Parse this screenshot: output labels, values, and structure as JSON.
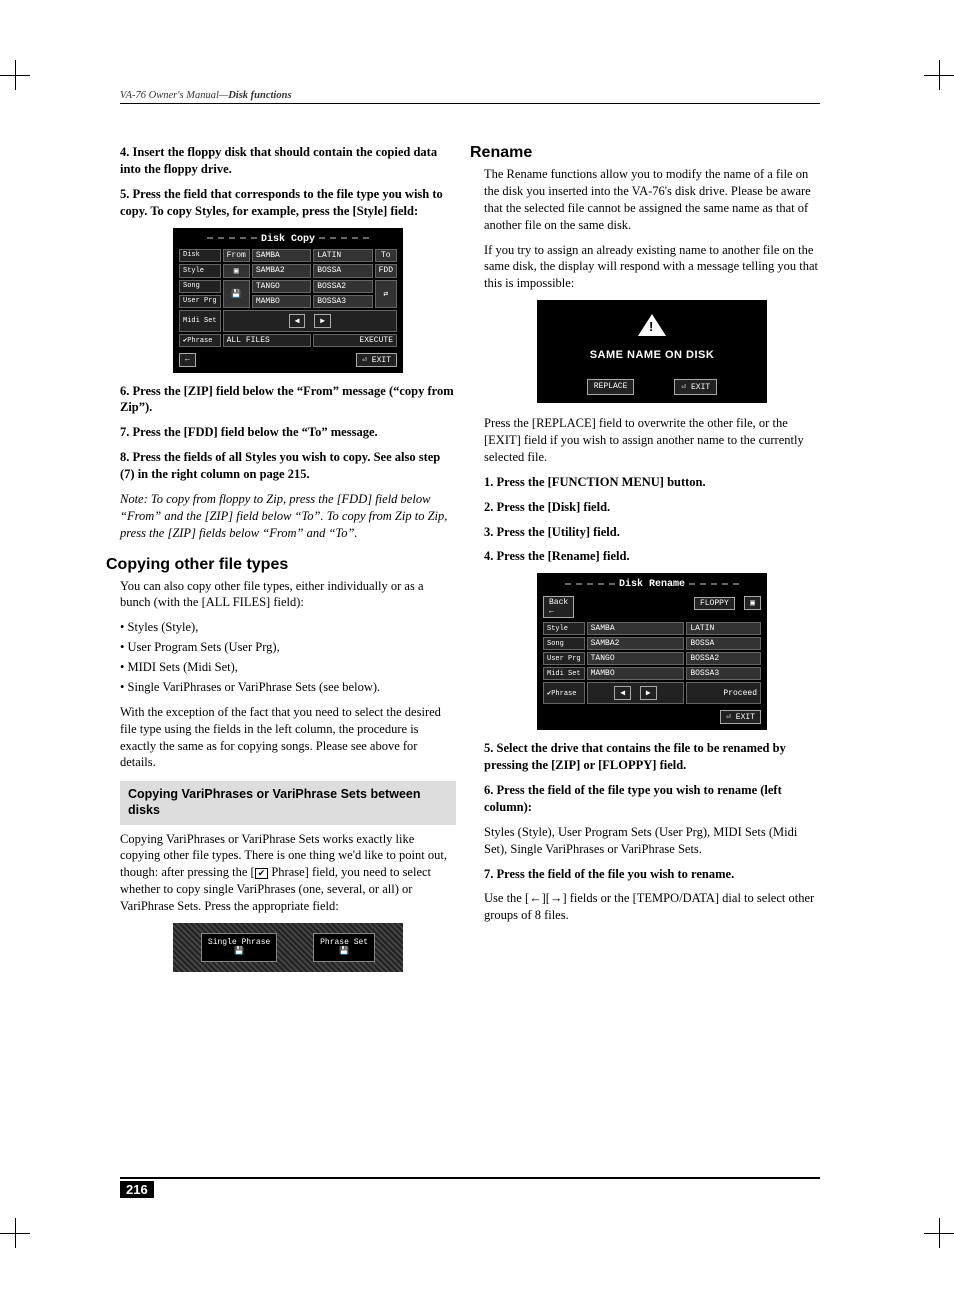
{
  "header": {
    "manual_title": "VA-76 Owner's Manual",
    "section": "Disk functions"
  },
  "page_number": "216",
  "left": {
    "step4": "4. Insert the floppy disk that should contain the copied data into the floppy drive.",
    "step5": "5. Press the field that corresponds to the file type you wish to copy. To copy Styles, for example, press the [Style] field:",
    "disk_copy": {
      "title": "Disk Copy",
      "side_labels": [
        "Disk",
        "Style",
        "Song",
        "User Prg",
        "Midi Set",
        "✔Phrase"
      ],
      "from_label": "From",
      "to_label": "To",
      "top_icons": [
        "▣",
        "FDD"
      ],
      "right_icon": "⇄",
      "rows": [
        [
          "SAMBA",
          "LATIN"
        ],
        [
          "SAMBA2",
          "BOSSA"
        ],
        [
          "TANGO",
          "BOSSA2"
        ],
        [
          "MAMBO",
          "BOSSA3"
        ]
      ],
      "nav": [
        "◀",
        "▶"
      ],
      "all_files": "ALL FILES",
      "execute": "EXECUTE",
      "back_icon": "←",
      "exit": "⏎ EXIT"
    },
    "step6": "6. Press the [ZIP] field below the “From” message (“copy from Zip”).",
    "step7": "7. Press the [FDD] field below the “To” message.",
    "step8": "8. Press the fields of all Styles you wish to copy. See also step (7) in the right column on page 215.",
    "note": "Note: To copy from floppy to Zip, press the [FDD] field below “From” and the [ZIP] field below “To”. To copy from Zip to Zip, press the [ZIP] fields below “From” and “To”.",
    "h_copy_other": "Copying other file types",
    "copy_other_intro": "You can also copy other file types, either individually or as a bunch (with the [ALL FILES] field):",
    "file_types": [
      "Styles (Style),",
      "User Program Sets (User Prg),",
      "MIDI Sets (Midi Set),",
      "Single VariPhrases or VariPhrase Sets (see below)."
    ],
    "copy_other_tail": "With the exception of the fact that you need to select the desired file type using the fields in the left column, the procedure is exactly the same as for copying songs. Please see above for details.",
    "sub_box": "Copying VariPhrases or VariPhrase Sets between disks",
    "vp_para_a": "Copying VariPhrases or VariPhrase Sets works exactly like copying other file types. There is one thing we'd like to point out, though: after pressing the [",
    "vp_para_b": " Phrase] field, you need to select whether to copy single VariPhrases (one, several, or all) or VariPhrase Sets. Press the appropriate field:",
    "phrase_lcd": {
      "left": "Single\nPhrase",
      "right": "Phrase\nSet"
    }
  },
  "right": {
    "h_rename": "Rename",
    "rename_p1": "The Rename functions allow you to modify the name of a file on the disk you inserted into the VA-76's disk drive. Please be aware that the selected file cannot be assigned the same name as that of another file on the same disk.",
    "rename_p2": "If you try to assign an already existing name to another file on the same disk, the display will respond with a message telling you that this is impossible:",
    "warn": {
      "msg": "SAME NAME ON DISK",
      "replace": "REPLACE",
      "exit": "⏎ EXIT"
    },
    "rename_p3": "Press the [REPLACE] field to overwrite the other file, or the [EXIT] field if you wish to assign another name to the currently selected file.",
    "step1": "1. Press the [FUNCTION MENU] button.",
    "step2": "2. Press the [Disk] field.",
    "step3": "3. Press the [Utility] field.",
    "step4": "4. Press the [Rename] field.",
    "disk_rename": {
      "title": "Disk Rename",
      "side_labels": [
        "Style",
        "Song",
        "User Prg",
        "Midi Set",
        "✔Phrase"
      ],
      "back": "Back\n←",
      "top_icons": [
        "FLOPPY",
        "▣"
      ],
      "rows": [
        [
          "SAMBA",
          "LATIN"
        ],
        [
          "SAMBA2",
          "BOSSA"
        ],
        [
          "TANGO",
          "BOSSA2"
        ],
        [
          "MAMBO",
          "BOSSA3"
        ]
      ],
      "nav": [
        "◀",
        "▶"
      ],
      "proceed": "Proceed",
      "exit": "⏎ EXIT"
    },
    "step5": "5. Select the drive that contains the file to be renamed by pressing the [ZIP] or [FLOPPY] field.",
    "step6": "6. Press the field of the file type you wish to rename (left column):",
    "step6_body": "Styles (Style), User Program Sets (User Prg), MIDI Sets (Midi Set), Single VariPhrases or VariPhrase Sets.",
    "step7": "7. Press the field of the file you wish to rename.",
    "step7_body": "Use the [←][→] fields or the [TEMPO/DATA] dial to select other groups of 8 files."
  }
}
